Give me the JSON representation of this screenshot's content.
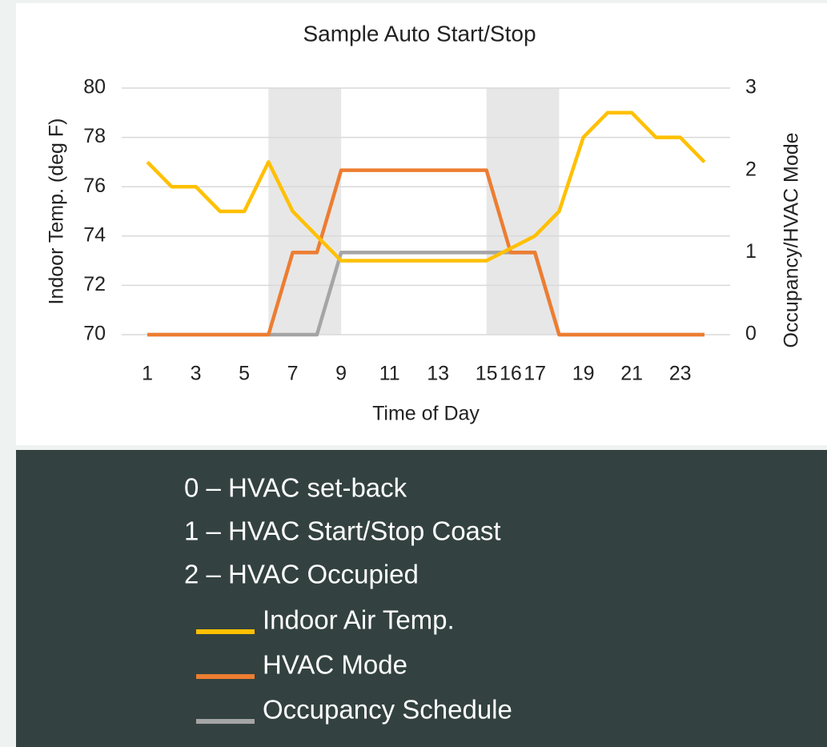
{
  "chart_data": {
    "type": "line",
    "title": "Sample Auto Start/Stop",
    "x_label": "Time of Day",
    "y_label": "Indoor Temp. (deg F)",
    "y2_label": "Occupancy/HVAC Mode",
    "categories": [
      1,
      null,
      3,
      null,
      5,
      null,
      7,
      null,
      9,
      null,
      11,
      null,
      13,
      null,
      15,
      16,
      17,
      null,
      19,
      null,
      21,
      null,
      23,
      null
    ],
    "series": [
      {
        "name": "Indoor Air Temp.",
        "color": "#FFC000",
        "values": [
          77,
          76,
          76,
          75,
          75,
          77,
          75,
          74,
          73,
          73,
          73,
          73,
          73,
          73,
          73,
          73.5,
          74,
          75,
          78,
          79,
          79,
          78,
          78,
          77
        ]
      },
      {
        "name": "HVAC Mode",
        "color": "#ED7D31",
        "axis": "y2",
        "values": [
          0,
          0,
          0,
          0,
          0,
          0,
          1,
          1,
          2,
          2,
          2,
          2,
          2,
          2,
          2,
          1,
          1,
          0,
          0,
          0,
          0,
          0,
          0,
          0
        ]
      },
      {
        "name": "Occupancy Schedule",
        "color": "#A5A5A5",
        "axis": "y2",
        "values": [
          0,
          0,
          0,
          0,
          0,
          0,
          0,
          0,
          1,
          1,
          1,
          1,
          1,
          1,
          1,
          1,
          1,
          0,
          0,
          0,
          0,
          0,
          0,
          0
        ]
      }
    ],
    "shaded_regions": [
      [
        6,
        9
      ],
      [
        15,
        18
      ]
    ],
    "ylim": [
      70,
      80
    ],
    "yticks": [
      70,
      72,
      74,
      76,
      78,
      80
    ],
    "y2lim": [
      0,
      3
    ],
    "y2ticks": [
      0,
      1,
      2,
      3
    ],
    "grid": true,
    "notes": [
      "0 – HVAC set-back",
      "1 – HVAC Start/Stop Coast",
      "2 – HVAC Occupied"
    ]
  }
}
